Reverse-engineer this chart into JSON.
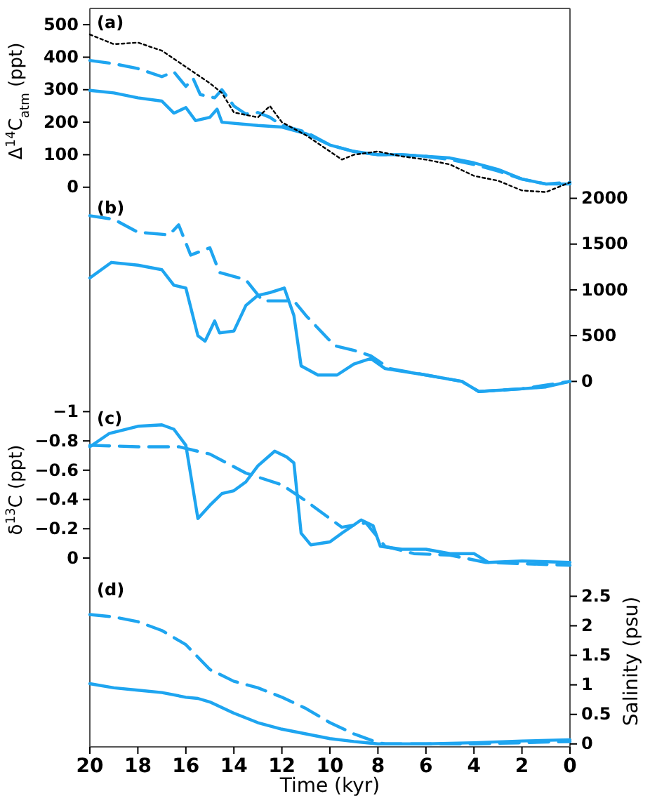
{
  "chart_data": [
    {
      "type": "line",
      "ylabel": "Δ$^{14}$C$_{atm}$ (ppt)",
      "annotations": [
        "(a)"
      ],
      "xlim": [
        20,
        0
      ],
      "ylim": [
        -20,
        550
      ],
      "yticks": [
        0,
        100,
        200,
        300,
        400,
        500
      ],
      "tick_labels": "y",
      "grid": false,
      "series": [
        {
          "color": "#1ea5f0",
          "line_style": "solid",
          "x": [
            20,
            19,
            18,
            17,
            16.5,
            16,
            15.6,
            15,
            14.7,
            14.5,
            13,
            12,
            11,
            10,
            9,
            8,
            7,
            6,
            5,
            4,
            3,
            2,
            1,
            0
          ],
          "values": [
            298,
            290,
            275,
            265,
            228,
            245,
            205,
            215,
            240,
            200,
            190,
            185,
            165,
            130,
            110,
            100,
            100,
            95,
            90,
            75,
            55,
            25,
            10,
            10
          ]
        },
        {
          "color": "#1ea5f0",
          "line_style": "dashed",
          "x": [
            20,
            19,
            18,
            17,
            16.5,
            16,
            15.7,
            15.4,
            14.8,
            14.5,
            14,
            13.5,
            13,
            12.5,
            12,
            11,
            10,
            9,
            8,
            7,
            6,
            5,
            4,
            3,
            2,
            1,
            0
          ],
          "values": [
            390,
            380,
            365,
            340,
            355,
            310,
            335,
            285,
            275,
            300,
            250,
            225,
            230,
            215,
            190,
            170,
            130,
            110,
            100,
            100,
            95,
            85,
            70,
            50,
            25,
            10,
            15
          ]
        },
        {
          "color": "#000000",
          "line_style": "dotted",
          "x": [
            20,
            19,
            18,
            17,
            16,
            15,
            14.5,
            14,
            13,
            12.5,
            12,
            11,
            10,
            9.5,
            9,
            8,
            7,
            6,
            5,
            4,
            3,
            2,
            1,
            0
          ],
          "values": [
            470,
            440,
            445,
            420,
            370,
            320,
            290,
            230,
            215,
            250,
            200,
            160,
            110,
            85,
            100,
            110,
            95,
            85,
            70,
            35,
            20,
            -10,
            -15,
            15
          ]
        }
      ]
    },
    {
      "type": "line",
      "annotations": [
        "(b)"
      ],
      "xlim": [
        20,
        0
      ],
      "y2lim": [
        -250,
        2050
      ],
      "y2ticks": [
        0,
        500,
        1000,
        1500,
        2000
      ],
      "tick_labels": "y",
      "grid": false,
      "series": [
        {
          "color": "#1ea5f0",
          "line_style": "solid",
          "axis": "y2",
          "x": [
            20,
            19.1,
            18,
            17,
            16.5,
            16,
            15.5,
            15.2,
            14.8,
            14.6,
            14,
            13.5,
            13,
            12.5,
            11.9,
            11.5,
            11.2,
            10.5,
            9.7,
            9,
            8.3,
            7.7,
            6,
            4.5,
            3.8,
            2,
            1,
            0
          ],
          "values": [
            1130,
            1300,
            1270,
            1220,
            1050,
            1020,
            500,
            440,
            660,
            530,
            550,
            830,
            940,
            970,
            1020,
            720,
            170,
            70,
            70,
            190,
            250,
            140,
            70,
            0,
            -110,
            -80,
            -60,
            0
          ]
        },
        {
          "color": "#1ea5f0",
          "line_style": "dashed",
          "axis": "y2",
          "x": [
            20,
            19,
            18,
            16.7,
            16.3,
            15.8,
            15,
            14.6,
            13.5,
            12.8,
            12,
            11.5,
            11,
            9.8,
            9,
            8.3,
            7.5,
            6,
            4.5,
            3.8,
            2,
            0
          ],
          "values": [
            1810,
            1770,
            1630,
            1600,
            1710,
            1380,
            1460,
            1190,
            1110,
            880,
            880,
            880,
            720,
            390,
            340,
            280,
            140,
            70,
            0,
            -110,
            -80,
            0
          ]
        }
      ]
    },
    {
      "type": "line",
      "ylabel": "δ$^{13}$C (ppt)",
      "annotations": [
        "(c)"
      ],
      "xlim": [
        20,
        0
      ],
      "ylim": [
        0.12,
        -1.05
      ],
      "yticks": [
        {
          "value": -1,
          "label": "−1"
        },
        {
          "value": -0.8,
          "label": "−0.8"
        },
        {
          "value": -0.6,
          "label": "−0.6"
        },
        {
          "value": -0.4,
          "label": "−0.4"
        },
        {
          "value": -0.2,
          "label": "−0.2"
        },
        0
      ],
      "tick_labels": "y",
      "grid": false,
      "series": [
        {
          "color": "#1ea5f0",
          "line_style": "solid",
          "x": [
            20,
            19.2,
            18,
            17,
            16.5,
            16,
            15.5,
            15,
            14.5,
            14,
            13.5,
            13,
            12.3,
            11.8,
            11.5,
            11.2,
            10.8,
            10,
            9.5,
            8.7,
            8.2,
            7.9,
            7,
            6,
            5,
            4,
            3.4,
            2,
            0
          ],
          "values": [
            -0.76,
            -0.85,
            -0.9,
            -0.91,
            -0.88,
            -0.77,
            -0.27,
            -0.36,
            -0.44,
            -0.46,
            -0.52,
            -0.63,
            -0.73,
            -0.69,
            -0.65,
            -0.17,
            -0.09,
            -0.11,
            -0.17,
            -0.26,
            -0.22,
            -0.08,
            -0.06,
            -0.06,
            -0.03,
            -0.03,
            0.03,
            0.02,
            0.03
          ]
        },
        {
          "color": "#1ea5f0",
          "line_style": "dashed",
          "x": [
            20,
            18,
            16.3,
            15,
            13.5,
            12,
            11,
            9.5,
            8.5,
            7.7,
            6.5,
            5,
            3.5,
            0
          ],
          "values": [
            -0.77,
            -0.76,
            -0.76,
            -0.71,
            -0.58,
            -0.5,
            -0.39,
            -0.21,
            -0.24,
            -0.08,
            -0.03,
            -0.02,
            0.03,
            0.05
          ]
        }
      ]
    },
    {
      "type": "line",
      "xlabel": "Time (kyr)",
      "y2label": "Salinity (psu)",
      "annotations": [
        "(d)"
      ],
      "xlim": [
        20,
        0
      ],
      "xticks": [
        20,
        18,
        16,
        14,
        12,
        10,
        8,
        6,
        4,
        2,
        0
      ],
      "y2lim": [
        -0.05,
        2.85
      ],
      "y2ticks": [
        0,
        0.5,
        1,
        1.5,
        2,
        2.5
      ],
      "grid": false,
      "series": [
        {
          "color": "#1ea5f0",
          "line_style": "solid",
          "axis": "y2",
          "x": [
            20,
            19,
            18,
            17,
            16,
            15.5,
            15,
            14,
            13,
            12,
            11,
            10,
            9,
            8,
            6,
            4,
            2,
            0
          ],
          "values": [
            1.02,
            0.95,
            0.91,
            0.87,
            0.79,
            0.77,
            0.71,
            0.52,
            0.36,
            0.25,
            0.17,
            0.09,
            0.04,
            0,
            0,
            0.02,
            0.05,
            0.07
          ]
        },
        {
          "color": "#1ea5f0",
          "line_style": "dashed",
          "axis": "y2",
          "x": [
            20,
            19,
            18,
            17,
            16,
            15,
            14,
            13,
            12,
            11,
            10,
            9,
            8,
            7.7,
            6,
            4,
            2,
            0
          ],
          "values": [
            2.19,
            2.15,
            2.07,
            1.92,
            1.68,
            1.26,
            1.06,
            0.95,
            0.79,
            0.6,
            0.36,
            0.17,
            0.02,
            0,
            0,
            0,
            0.02,
            0.04
          ]
        }
      ]
    }
  ]
}
